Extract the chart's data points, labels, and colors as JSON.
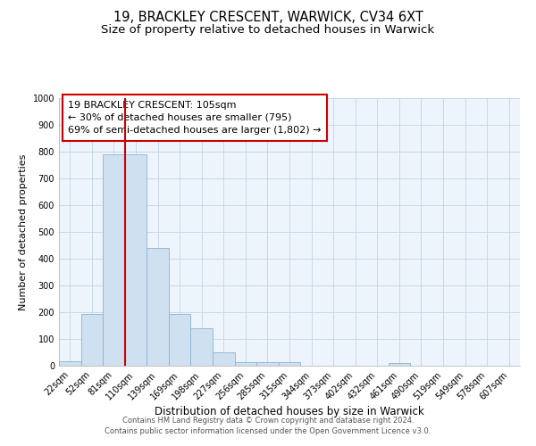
{
  "title": "19, BRACKLEY CRESCENT, WARWICK, CV34 6XT",
  "subtitle": "Size of property relative to detached houses in Warwick",
  "xlabel": "Distribution of detached houses by size in Warwick",
  "ylabel": "Number of detached properties",
  "bar_color": "#cfe0f0",
  "bar_edge_color": "#8ab4d4",
  "grid_color": "#c8d8e8",
  "background_color": "#eef4fc",
  "bin_labels": [
    "22sqm",
    "52sqm",
    "81sqm",
    "110sqm",
    "139sqm",
    "169sqm",
    "198sqm",
    "227sqm",
    "256sqm",
    "285sqm",
    "315sqm",
    "344sqm",
    "373sqm",
    "402sqm",
    "432sqm",
    "461sqm",
    "490sqm",
    "519sqm",
    "549sqm",
    "578sqm",
    "607sqm"
  ],
  "bar_values": [
    18,
    195,
    790,
    790,
    440,
    195,
    140,
    50,
    15,
    12,
    12,
    0,
    0,
    0,
    0,
    10,
    0,
    0,
    0,
    0,
    0
  ],
  "red_line_x": 2.5,
  "annotation_text": "19 BRACKLEY CRESCENT: 105sqm\n← 30% of detached houses are smaller (795)\n69% of semi-detached houses are larger (1,802) →",
  "annotation_box_color": "white",
  "annotation_border_color": "#cc0000",
  "red_line_color": "#cc0000",
  "ylim": [
    0,
    1000
  ],
  "yticks": [
    0,
    100,
    200,
    300,
    400,
    500,
    600,
    700,
    800,
    900,
    1000
  ],
  "footer": "Contains HM Land Registry data © Crown copyright and database right 2024.\nContains public sector information licensed under the Open Government Licence v3.0.",
  "title_fontsize": 10.5,
  "subtitle_fontsize": 9.5,
  "annotation_fontsize": 8,
  "tick_fontsize": 7,
  "ylabel_fontsize": 8,
  "xlabel_fontsize": 8.5,
  "footer_fontsize": 6
}
